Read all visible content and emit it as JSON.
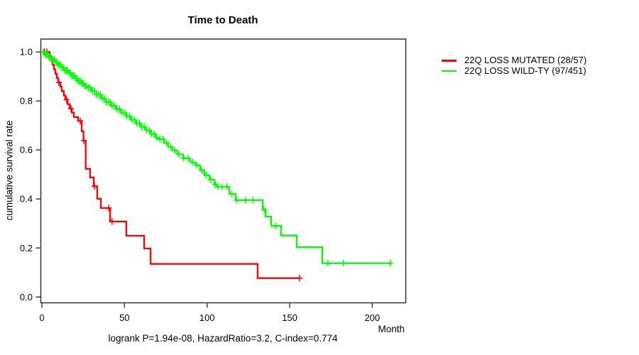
{
  "chart_data": {
    "type": "line",
    "subtype": "kaplan-meier-step",
    "title": "Time to Death",
    "xlabel": "Month",
    "ylabel": "cumulative survival rate",
    "footnote": "logrank P=1.94e-08, HazardRatio=3.2, C-index=0.774",
    "xlim": [
      0,
      220
    ],
    "ylim": [
      0,
      1
    ],
    "xticks": [
      0,
      50,
      100,
      150,
      200
    ],
    "yticks": [
      "0.0",
      "0.2",
      "0.4",
      "0.6",
      "0.8",
      "1.0"
    ],
    "grid": false,
    "legend_position": "outside-top-right",
    "axis_color": "#333333",
    "series": [
      {
        "name": "22Q LOSS MUTATED (28/57)",
        "color": "#ff0000",
        "events_total": "28/57",
        "end_time": 156.4,
        "steps": [
          [
            0,
            1.0
          ],
          [
            4.7,
            0.982
          ],
          [
            5.6,
            0.964
          ],
          [
            6.5,
            0.947
          ],
          [
            7.3,
            0.929
          ],
          [
            8.2,
            0.911
          ],
          [
            9.0,
            0.893
          ],
          [
            9.9,
            0.875
          ],
          [
            11.2,
            0.858
          ],
          [
            12.0,
            0.84
          ],
          [
            13.3,
            0.822
          ],
          [
            14.2,
            0.805
          ],
          [
            15.5,
            0.787
          ],
          [
            16.8,
            0.769
          ],
          [
            18.1,
            0.752
          ],
          [
            19.4,
            0.734
          ],
          [
            21.9,
            0.718
          ],
          [
            24.1,
            0.676
          ],
          [
            25.2,
            0.638
          ],
          [
            26.5,
            0.523
          ],
          [
            29.2,
            0.488
          ],
          [
            31.4,
            0.452
          ],
          [
            33.5,
            0.401
          ],
          [
            35.7,
            0.363
          ],
          [
            41.3,
            0.308
          ],
          [
            51.1,
            0.25
          ],
          [
            61.9,
            0.198
          ],
          [
            65.8,
            0.135
          ],
          [
            130.6,
            0.077
          ]
        ],
        "censor_times": [
          1.5,
          3.0,
          10.3,
          15.0,
          17.6,
          23.2,
          25.4,
          31.8,
          40.4,
          42.5,
          156.0
        ]
      },
      {
        "name": "22Q LOSS WILD-TY (97/451)",
        "color": "#00ff00",
        "events_total": "97/451",
        "end_time": 211.9,
        "steps": [
          [
            0,
            1.0
          ],
          [
            2,
            0.989
          ],
          [
            4,
            0.978
          ],
          [
            6,
            0.968
          ],
          [
            8,
            0.957
          ],
          [
            10,
            0.946
          ],
          [
            12,
            0.935
          ],
          [
            14,
            0.924
          ],
          [
            16,
            0.914
          ],
          [
            18,
            0.903
          ],
          [
            20,
            0.892
          ],
          [
            22,
            0.881
          ],
          [
            24,
            0.871
          ],
          [
            26,
            0.86
          ],
          [
            27.1,
            0.854
          ],
          [
            30,
            0.84
          ],
          [
            33,
            0.825
          ],
          [
            36,
            0.81
          ],
          [
            39,
            0.795
          ],
          [
            42,
            0.78
          ],
          [
            45,
            0.766
          ],
          [
            48,
            0.752
          ],
          [
            51,
            0.738
          ],
          [
            54,
            0.723
          ],
          [
            57,
            0.709
          ],
          [
            60,
            0.694
          ],
          [
            63,
            0.68
          ],
          [
            66,
            0.665
          ],
          [
            69,
            0.651
          ],
          [
            70.5,
            0.644
          ],
          [
            74,
            0.628
          ],
          [
            76.5,
            0.612
          ],
          [
            79,
            0.598
          ],
          [
            82,
            0.582
          ],
          [
            85.5,
            0.566
          ],
          [
            89.8,
            0.55
          ],
          [
            92.8,
            0.537
          ],
          [
            95.8,
            0.517
          ],
          [
            98.4,
            0.497
          ],
          [
            101.4,
            0.479
          ],
          [
            104.4,
            0.459
          ],
          [
            105.7,
            0.45
          ],
          [
            113.5,
            0.421
          ],
          [
            117.3,
            0.395
          ],
          [
            133.7,
            0.357
          ],
          [
            135.4,
            0.328
          ],
          [
            138.8,
            0.29
          ],
          [
            144.8,
            0.251
          ],
          [
            154.3,
            0.203
          ],
          [
            169.8,
            0.138
          ]
        ],
        "censor_times": [
          1.0,
          2.0,
          2.8,
          3.6,
          4.4,
          5.2,
          6.0,
          6.8,
          7.6,
          8.4,
          9.2,
          10.0,
          10.8,
          11.6,
          12.4,
          13.2,
          14.0,
          14.8,
          15.6,
          16.4,
          17.2,
          18.0,
          18.8,
          19.6,
          20.4,
          21.2,
          22.0,
          22.8,
          23.6,
          24.4,
          25.2,
          26.0,
          27.0,
          28.2,
          29.4,
          30.6,
          31.8,
          33.0,
          34.2,
          35.4,
          36.6,
          37.8,
          39.0,
          40.2,
          41.4,
          42.6,
          44.0,
          45.5,
          47.0,
          48.5,
          50.0,
          51.5,
          53.0,
          54.5,
          56.0,
          57.5,
          59.0,
          60.5,
          62.0,
          63.5,
          65.0,
          66.5,
          68.0,
          69.5,
          71.5,
          73.5,
          75.5,
          78.0,
          80.5,
          83.0,
          85.8,
          88.5,
          91.2,
          94.0,
          96.8,
          99.5,
          102.2,
          105.0,
          106.6,
          109.0,
          112.0,
          115.0,
          118.0,
          123.3,
          127.8,
          134.5,
          141.5,
          173.2,
          182.6,
          211.0
        ]
      }
    ]
  }
}
